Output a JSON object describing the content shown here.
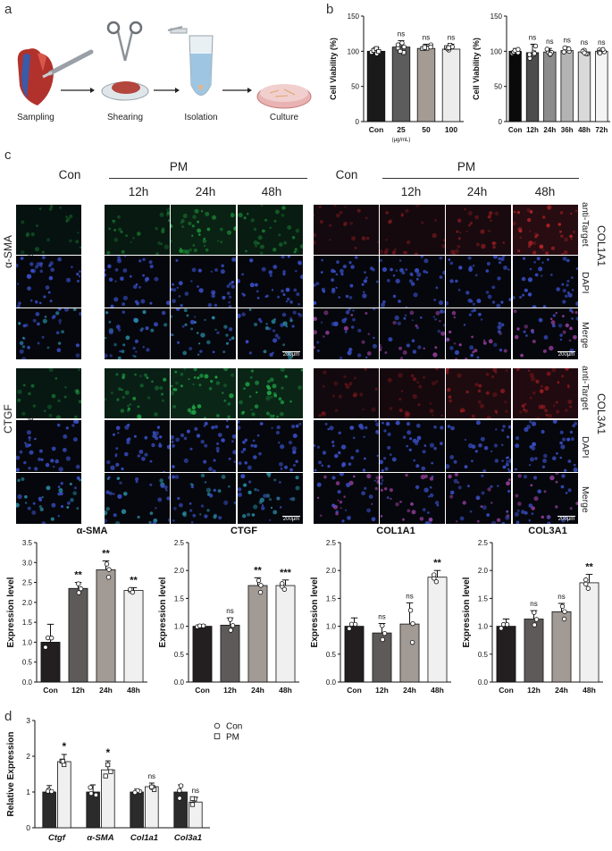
{
  "panels": {
    "a": "a",
    "b": "b",
    "c": "c",
    "d": "d"
  },
  "panel_a": {
    "steps": [
      "Sampling",
      "Shearing",
      "Isolation",
      "Culture"
    ]
  },
  "panel_c": {
    "con_label": "Con",
    "pm_label": "PM",
    "timepoints": [
      "12h",
      "24h",
      "48h"
    ],
    "row_labels": [
      "anti-Target",
      "DAPI",
      "Merge"
    ],
    "left_groups": [
      "α-SMA",
      "CTGF"
    ],
    "right_groups": [
      "COL1A1",
      "COL3A1"
    ],
    "scale_bar": "200μm",
    "colors": {
      "alpha_sma": "#1f9e3c",
      "col1a1": "#c0262a",
      "ctgf": "#22b04a",
      "col3a1": "#b52025",
      "dapi": "#3a4fc8"
    }
  },
  "chart_data": [
    {
      "id": "b1",
      "type": "bar",
      "categories": [
        "Con",
        "25",
        "50",
        "100"
      ],
      "values": [
        100,
        106,
        104,
        103
      ],
      "errors": [
        5,
        9,
        6,
        7
      ],
      "ylabel": "Cell Viability (%)",
      "ylim": [
        0,
        150
      ],
      "yticks": [
        0,
        50,
        100,
        150
      ],
      "annotations": [
        "",
        "ns",
        "ns",
        "ns"
      ],
      "xunit": "(μg/mL)",
      "colors": [
        "#1a1a1a",
        "#5c5c5c",
        "#a39b94",
        "#ececec"
      ]
    },
    {
      "id": "b2",
      "type": "bar",
      "categories": [
        "Con",
        "12h",
        "24h",
        "36h",
        "48h",
        "72h"
      ],
      "values": [
        100,
        98,
        99,
        101,
        99,
        100
      ],
      "errors": [
        4,
        12,
        5,
        5,
        4,
        3
      ],
      "ylabel": "Cell Viability (%)",
      "ylim": [
        0,
        150
      ],
      "yticks": [
        0,
        50,
        100,
        150
      ],
      "annotations": [
        "",
        "ns",
        "ns",
        "ns",
        "ns",
        "ns"
      ],
      "colors": [
        "#0a0a0a",
        "#4d4d4d",
        "#8c8c8c",
        "#b3b3b3",
        "#d9d9d9",
        "#f4f4f4"
      ]
    },
    {
      "id": "c1",
      "type": "bar",
      "title": "α-SMA",
      "categories": [
        "Con",
        "12h",
        "24h",
        "48h"
      ],
      "values": [
        1.0,
        2.35,
        2.82,
        2.3
      ],
      "errors": [
        0.45,
        0.15,
        0.22,
        0.07
      ],
      "ylabel": "Expression level",
      "ylim": [
        0,
        3.5
      ],
      "yticks": [
        0.0,
        0.5,
        1.0,
        1.5,
        2.0,
        2.5,
        3.0,
        3.5
      ],
      "annotations": [
        "",
        "**",
        "**",
        "**"
      ],
      "colors": [
        "#231f20",
        "#5e5a5a",
        "#a19a95",
        "#f0f0f0"
      ]
    },
    {
      "id": "c2",
      "type": "bar",
      "title": "CTGF",
      "categories": [
        "Con",
        "12h",
        "24h",
        "48h"
      ],
      "values": [
        1.0,
        1.02,
        1.73,
        1.73
      ],
      "errors": [
        0.03,
        0.13,
        0.14,
        0.1
      ],
      "ylabel": "Expression level",
      "ylim": [
        0,
        2.5
      ],
      "yticks": [
        0.0,
        0.5,
        1.0,
        1.5,
        2.0,
        2.5
      ],
      "annotations": [
        "",
        "ns",
        "**",
        "***"
      ],
      "colors": [
        "#231f20",
        "#5e5a5a",
        "#a19a95",
        "#f0f0f0"
      ]
    },
    {
      "id": "c3",
      "type": "bar",
      "title": "COL1A1",
      "categories": [
        "Con",
        "12h",
        "24h",
        "48h"
      ],
      "values": [
        1.0,
        0.88,
        1.04,
        1.88
      ],
      "errors": [
        0.15,
        0.17,
        0.38,
        0.12
      ],
      "ylabel": "Expression level",
      "ylim": [
        0,
        2.5
      ],
      "yticks": [
        0.0,
        0.5,
        1.0,
        1.5,
        2.0,
        2.5
      ],
      "annotations": [
        "",
        "ns",
        "ns",
        "**"
      ],
      "colors": [
        "#231f20",
        "#5e5a5a",
        "#a19a95",
        "#f0f0f0"
      ]
    },
    {
      "id": "c4",
      "type": "bar",
      "title": "COL3A1",
      "categories": [
        "Con",
        "12h",
        "24h",
        "48h"
      ],
      "values": [
        1.0,
        1.13,
        1.26,
        1.78
      ],
      "errors": [
        0.13,
        0.15,
        0.15,
        0.15
      ],
      "ylabel": "Expression level",
      "ylim": [
        0,
        2.5
      ],
      "yticks": [
        0.0,
        0.5,
        1.0,
        1.5,
        2.0,
        2.5
      ],
      "annotations": [
        "",
        "ns",
        "ns",
        "**"
      ],
      "colors": [
        "#231f20",
        "#5e5a5a",
        "#a19a95",
        "#f0f0f0"
      ]
    },
    {
      "id": "d",
      "type": "bar",
      "categories": [
        "Ctgf",
        "α-SMA",
        "Col1a1",
        "Col3a1"
      ],
      "series": [
        {
          "name": "Con",
          "values": [
            1.0,
            1.0,
            1.0,
            1.0
          ],
          "errors": [
            0.18,
            0.2,
            0.08,
            0.2
          ]
        },
        {
          "name": "PM",
          "values": [
            1.85,
            1.62,
            1.15,
            0.72
          ],
          "errors": [
            0.2,
            0.25,
            0.1,
            0.13
          ]
        }
      ],
      "ylabel": "Relative Expression",
      "ylim": [
        0,
        3
      ],
      "yticks": [
        0,
        1,
        2,
        3
      ],
      "annotations": [
        "*",
        "*",
        "ns",
        "ns"
      ],
      "colors": [
        "#2b2b2b",
        "#f0f0f0"
      ],
      "legend": "top-right"
    }
  ]
}
